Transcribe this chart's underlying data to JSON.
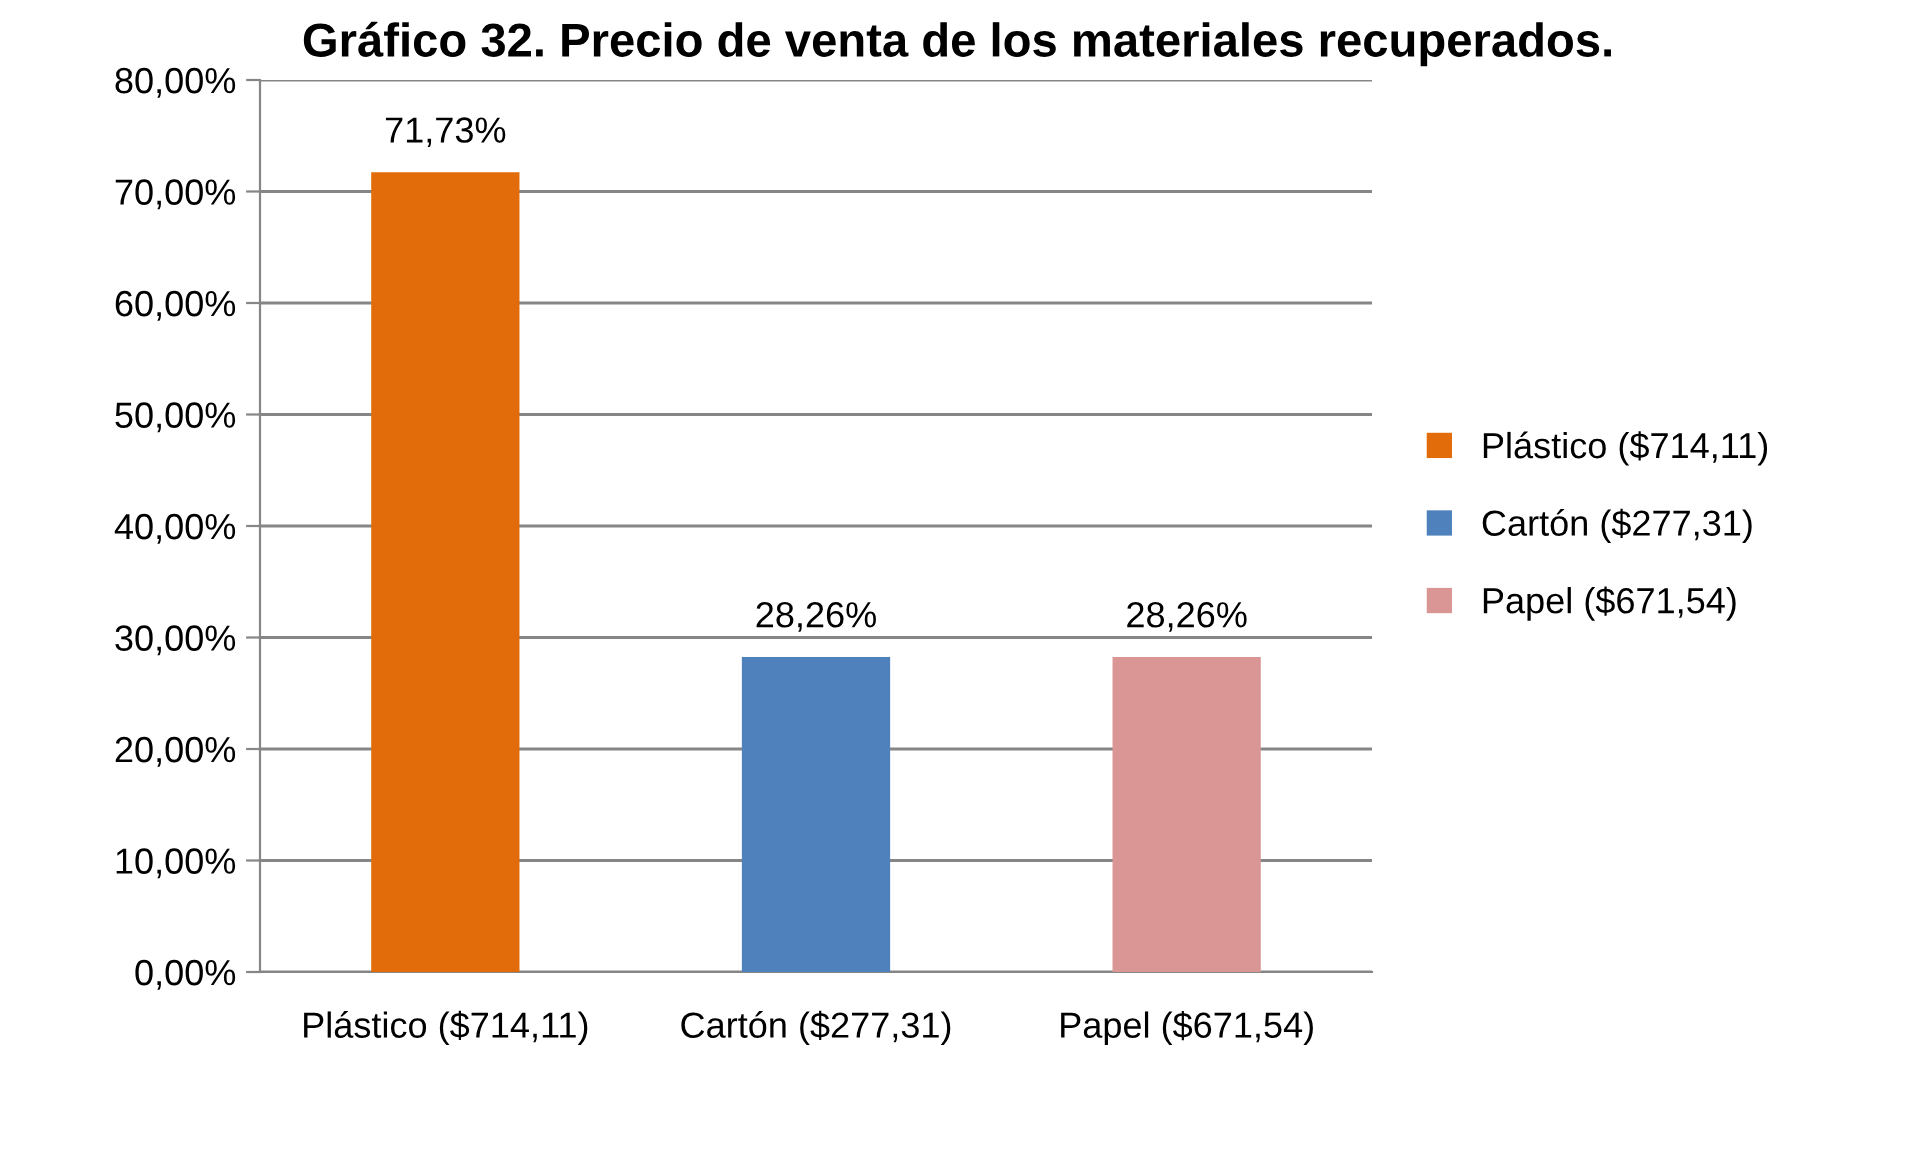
{
  "chart_data": {
    "type": "bar",
    "title": "Gráfico 32. Precio de venta de los materiales recuperados.",
    "categories": [
      "Plástico ($714,11)",
      "Cartón ($277,31)",
      "Papel ($671,54)"
    ],
    "series": [
      {
        "name": "Plástico ($714,11)",
        "color": "#e36c0a",
        "values": [
          71.73,
          null,
          null
        ],
        "value_labels": [
          "71,73%",
          null,
          null
        ]
      },
      {
        "name": "Cartón ($277,31)",
        "color": "#4f81bd",
        "values": [
          null,
          28.26,
          null
        ],
        "value_labels": [
          null,
          "28,26%",
          null
        ]
      },
      {
        "name": "Papel ($671,54)",
        "color": "#d99694",
        "values": [
          null,
          null,
          28.26
        ],
        "value_labels": [
          null,
          null,
          "28,26%"
        ]
      }
    ],
    "ylim": [
      0,
      80
    ],
    "yticks": [
      {
        "value": 0,
        "label": "0,00%"
      },
      {
        "value": 10,
        "label": "10,00%"
      },
      {
        "value": 20,
        "label": "20,00%"
      },
      {
        "value": 30,
        "label": "30,00%"
      },
      {
        "value": 40,
        "label": "40,00%"
      },
      {
        "value": 50,
        "label": "50,00%"
      },
      {
        "value": 60,
        "label": "60,00%"
      },
      {
        "value": 70,
        "label": "70,00%"
      },
      {
        "value": 80,
        "label": "80,00%"
      }
    ],
    "grid": "y",
    "legend": "right"
  }
}
